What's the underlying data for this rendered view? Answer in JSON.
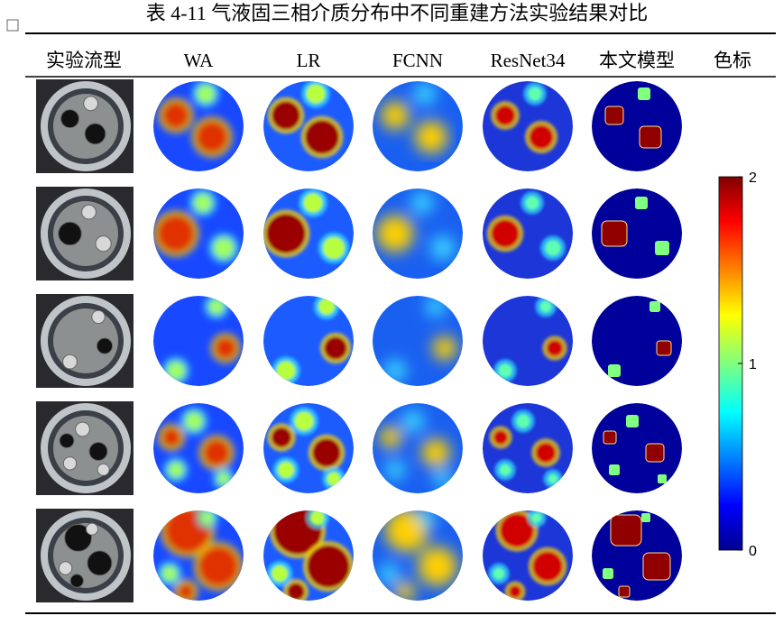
{
  "caption": "表 4-11 气液固三相介质分布中不同重建方法实验结果对比",
  "table": {
    "headers": [
      "实验流型",
      "WA",
      "LR",
      "FCNN",
      "ResNet34",
      "本文模型",
      "色标"
    ]
  },
  "colorbar": {
    "ticks": [
      2,
      1,
      0
    ]
  }
}
